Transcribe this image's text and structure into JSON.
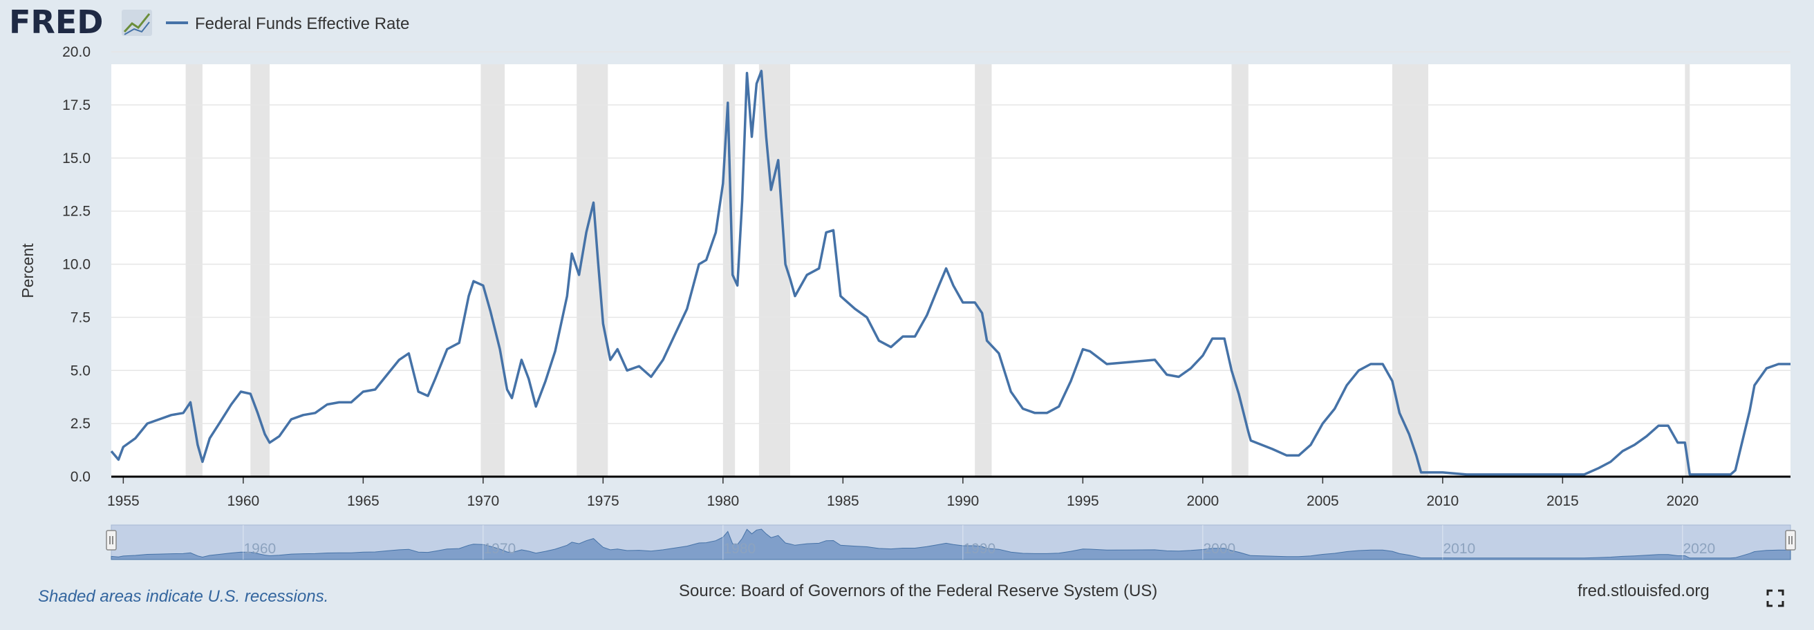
{
  "header": {
    "logo_text": "FRED",
    "legend_label": "Federal Funds Effective Rate",
    "line_color": "#4572a7"
  },
  "footer": {
    "recession_note": "Shaded areas indicate U.S. recessions.",
    "source": "Source: Board of Governors of the Federal Reserve System (US)",
    "url": "fred.stlouisfed.org"
  },
  "chart_data": {
    "type": "line",
    "ylabel": "Percent",
    "ylim": [
      0,
      20
    ],
    "xlim": [
      1954.5,
      2024.5
    ],
    "y_ticks": [
      "0.0",
      "2.5",
      "5.0",
      "7.5",
      "10.0",
      "12.5",
      "15.0",
      "17.5",
      "20.0"
    ],
    "x_ticks": [
      "1955",
      "1960",
      "1965",
      "1970",
      "1975",
      "1980",
      "1985",
      "1990",
      "1995",
      "2000",
      "2005",
      "2010",
      "2015",
      "2020"
    ],
    "navigator_ticks": [
      "1960",
      "1970",
      "1980",
      "1990",
      "2000",
      "2010",
      "2020"
    ],
    "grid": true,
    "recession_color": "#e5e5e5",
    "recessions": [
      [
        1957.6,
        1958.3
      ],
      [
        1960.3,
        1961.1
      ],
      [
        1969.9,
        1970.9
      ],
      [
        1973.9,
        1975.2
      ],
      [
        1980.0,
        1980.5
      ],
      [
        1981.5,
        1982.8
      ],
      [
        1990.5,
        1991.2
      ],
      [
        2001.2,
        2001.9
      ],
      [
        2007.9,
        2009.4
      ],
      [
        2020.1,
        2020.3
      ]
    ],
    "series": [
      {
        "name": "Federal Funds Effective Rate",
        "x": [
          1954.5,
          1954.8,
          1955.0,
          1955.5,
          1956.0,
          1956.5,
          1957.0,
          1957.5,
          1957.8,
          1958.1,
          1958.3,
          1958.6,
          1959.0,
          1959.5,
          1959.9,
          1960.3,
          1960.6,
          1960.9,
          1961.1,
          1961.5,
          1962.0,
          1962.5,
          1963.0,
          1963.5,
          1964.0,
          1964.5,
          1965.0,
          1965.5,
          1966.0,
          1966.5,
          1966.9,
          1967.3,
          1967.7,
          1968.0,
          1968.5,
          1969.0,
          1969.4,
          1969.6,
          1970.0,
          1970.3,
          1970.7,
          1971.0,
          1971.2,
          1971.6,
          1971.9,
          1972.2,
          1972.6,
          1973.0,
          1973.5,
          1973.7,
          1974.0,
          1974.3,
          1974.6,
          1974.8,
          1975.0,
          1975.3,
          1975.6,
          1976.0,
          1976.5,
          1977.0,
          1977.5,
          1978.0,
          1978.5,
          1979.0,
          1979.3,
          1979.7,
          1980.0,
          1980.2,
          1980.4,
          1980.6,
          1980.8,
          1981.0,
          1981.2,
          1981.4,
          1981.6,
          1981.8,
          1982.0,
          1982.3,
          1982.6,
          1982.8,
          1983.0,
          1983.5,
          1984.0,
          1984.3,
          1984.6,
          1984.9,
          1985.0,
          1985.5,
          1986.0,
          1986.5,
          1987.0,
          1987.5,
          1988.0,
          1988.5,
          1989.0,
          1989.3,
          1989.6,
          1990.0,
          1990.5,
          1990.8,
          1991.0,
          1991.5,
          1992.0,
          1992.5,
          1993.0,
          1993.5,
          1994.0,
          1994.5,
          1995.0,
          1995.3,
          1996.0,
          1997.0,
          1998.0,
          1998.5,
          1999.0,
          1999.5,
          2000.0,
          2000.4,
          2000.9,
          2001.2,
          2001.5,
          2001.9,
          2002.0,
          2002.9,
          2003.5,
          2004.0,
          2004.5,
          2005.0,
          2005.5,
          2006.0,
          2006.5,
          2007.0,
          2007.5,
          2007.9,
          2008.2,
          2008.6,
          2008.9,
          2009.1,
          2010.0,
          2011.0,
          2012.0,
          2013.0,
          2014.0,
          2015.0,
          2015.9,
          2016.5,
          2017.0,
          2017.5,
          2018.0,
          2018.5,
          2019.0,
          2019.4,
          2019.8,
          2020.1,
          2020.3,
          2021.0,
          2022.0,
          2022.2,
          2022.5,
          2022.8,
          2023.0,
          2023.5,
          2024.0,
          2024.5
        ],
        "values": [
          1.2,
          0.8,
          1.4,
          1.8,
          2.5,
          2.7,
          2.9,
          3.0,
          3.5,
          1.5,
          0.7,
          1.8,
          2.5,
          3.4,
          4.0,
          3.9,
          3.0,
          2.0,
          1.6,
          1.9,
          2.7,
          2.9,
          3.0,
          3.4,
          3.5,
          3.5,
          4.0,
          4.1,
          4.8,
          5.5,
          5.8,
          4.0,
          3.8,
          4.6,
          6.0,
          6.3,
          8.5,
          9.2,
          9.0,
          7.8,
          6.0,
          4.1,
          3.7,
          5.5,
          4.6,
          3.3,
          4.5,
          5.9,
          8.5,
          10.5,
          9.5,
          11.5,
          12.9,
          10.0,
          7.2,
          5.5,
          6.0,
          5.0,
          5.2,
          4.7,
          5.5,
          6.7,
          7.9,
          10.0,
          10.2,
          11.5,
          13.8,
          17.6,
          9.5,
          9.0,
          13.0,
          19.0,
          16.0,
          18.5,
          19.1,
          16.0,
          13.5,
          14.9,
          10.0,
          9.3,
          8.5,
          9.5,
          9.8,
          11.5,
          11.6,
          8.5,
          8.4,
          7.9,
          7.5,
          6.4,
          6.1,
          6.6,
          6.6,
          7.6,
          9.0,
          9.8,
          9.0,
          8.2,
          8.2,
          7.7,
          6.4,
          5.8,
          4.0,
          3.2,
          3.0,
          3.0,
          3.3,
          4.5,
          6.0,
          5.9,
          5.3,
          5.4,
          5.5,
          4.8,
          4.7,
          5.1,
          5.7,
          6.5,
          6.5,
          5.0,
          3.9,
          2.1,
          1.7,
          1.3,
          1.0,
          1.0,
          1.5,
          2.5,
          3.2,
          4.3,
          5.0,
          5.3,
          5.3,
          4.5,
          3.0,
          2.0,
          1.0,
          0.2,
          0.2,
          0.1,
          0.1,
          0.1,
          0.1,
          0.1,
          0.1,
          0.4,
          0.7,
          1.2,
          1.5,
          1.9,
          2.4,
          2.4,
          1.6,
          1.6,
          0.1,
          0.1,
          0.1,
          0.3,
          1.7,
          3.1,
          4.3,
          5.1,
          5.3,
          5.3
        ]
      }
    ]
  }
}
